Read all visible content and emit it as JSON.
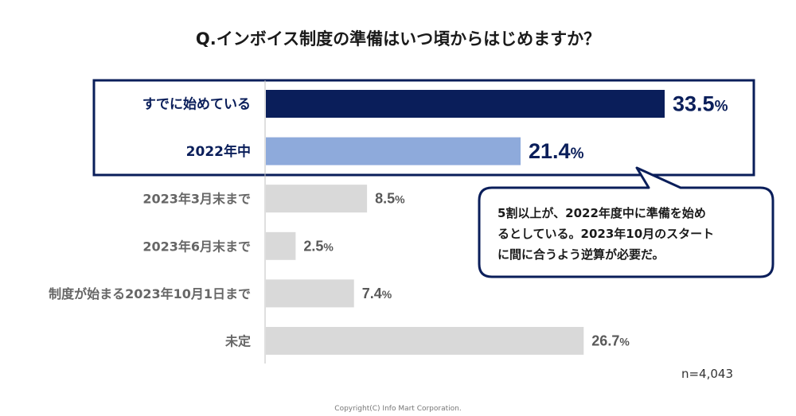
{
  "chart_data": {
    "type": "bar",
    "orientation": "horizontal",
    "title": "Q.インボイス制度の準備はいつ頃からはじめますか？",
    "categories": [
      "すでに始めている",
      "2022年中",
      "2023年3月末まで",
      "2023年6月末まで",
      "制度が始まる2023年10月1日まで",
      "未定"
    ],
    "values": [
      33.5,
      21.4,
      8.5,
      2.5,
      7.4,
      26.7
    ],
    "value_labels": [
      "33.5",
      "21.4",
      "8.5",
      "2.5",
      "7.4",
      "26.7"
    ],
    "unit": "%",
    "highlighted": [
      true,
      true,
      false,
      false,
      false,
      false
    ],
    "colors": [
      "#0a1e5a",
      "#8eaadb",
      "#d9d9d9",
      "#d9d9d9",
      "#d9d9d9",
      "#d9d9d9"
    ],
    "xlim": [
      0,
      33.5
    ],
    "grid": false,
    "legend": "none",
    "sample_size": "n=4,043"
  },
  "callout": {
    "lines": [
      "5割以上が、2022年度中に準備を始め",
      "るとしている。2023年10月のスタート",
      "に間に合うよう逆算が必要だ。"
    ]
  },
  "footer": {
    "copyright": "Copyright(C) Info Mart Corporation."
  },
  "style": {
    "highlight_border": "#0a1e5a",
    "callout_border": "#0a1e5a"
  }
}
